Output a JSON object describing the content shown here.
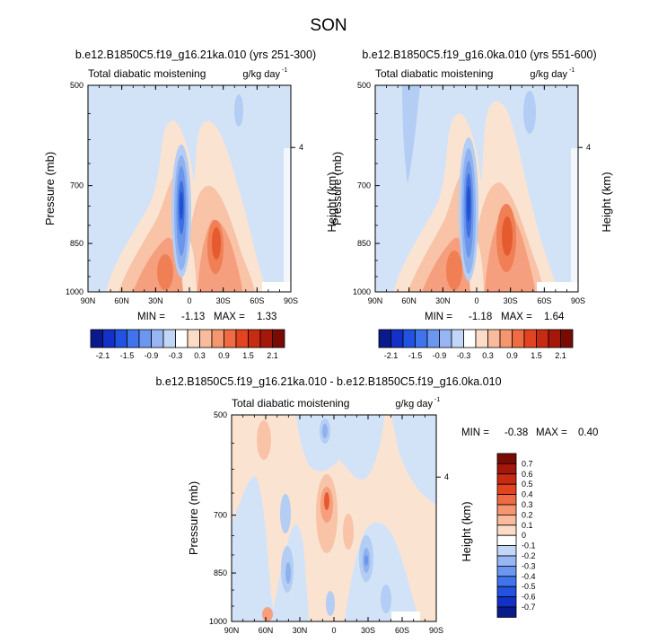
{
  "figure": {
    "title": "SON"
  },
  "chart_data": [
    {
      "type": "heatmap",
      "title": "b.e12.B1850C5.f19_g16.21ka.010 (yrs 251-300)",
      "left_string": "Total diabatic moistening",
      "right_string": "g/kg day",
      "right_string_sup": "-1",
      "xlabels": [
        "90N",
        "60N",
        "30N",
        "0",
        "30S",
        "60S",
        "90S"
      ],
      "xlim": [
        90,
        -90
      ],
      "ylabel": "Pressure (mb)",
      "ylabels": [
        "500",
        "700",
        "850",
        "1000"
      ],
      "y2label": "Height (km)",
      "y2labels": [
        "4"
      ],
      "ylim": [
        1000,
        500
      ],
      "stats_min_label": "MIN = ",
      "stats_min": "-1.13",
      "stats_max_label": "MAX = ",
      "stats_max": "1.33",
      "features": [
        {
          "kind": "drying_core",
          "lat": -7,
          "p_top": 690,
          "p_bottom": 930,
          "value": -1.13
        },
        {
          "kind": "moistening_band",
          "lat": 20,
          "value": 1.33
        },
        {
          "kind": "moistening_band",
          "lat": -25,
          "value": 1.2
        }
      ]
    },
    {
      "type": "heatmap",
      "title": "b.e12.B1850C5.f19_g16.0ka.010 (yrs 551-600)",
      "left_string": "Total diabatic moistening",
      "right_string": "g/kg day",
      "right_string_sup": "-1",
      "xlabels": [
        "90N",
        "60N",
        "30N",
        "0",
        "30S",
        "60S",
        "90S"
      ],
      "xlim": [
        90,
        -90
      ],
      "ylabel": "Pressure (mb)",
      "ylabels": [
        "500",
        "700",
        "850",
        "1000"
      ],
      "y2label": "Height (km)",
      "y2labels": [
        "4"
      ],
      "ylim": [
        1000,
        500
      ],
      "stats_min_label": "MIN = ",
      "stats_min": "-1.18",
      "stats_max_label": "MAX = ",
      "stats_max": "1.64",
      "features": [
        {
          "kind": "drying_core",
          "lat": -7,
          "p_top": 680,
          "p_bottom": 930,
          "value": -1.18
        },
        {
          "kind": "moistening_band",
          "lat": 22,
          "value": 1.4
        },
        {
          "kind": "moistening_band",
          "lat": -28,
          "value": 1.64
        }
      ]
    },
    {
      "type": "heatmap",
      "title": "b.e12.B1850C5.f19_g16.21ka.010 - b.e12.B1850C5.f19_g16.0ka.010",
      "left_string": "Total diabatic moistening",
      "right_string": "g/kg day",
      "right_string_sup": "-1",
      "xlabels": [
        "90N",
        "60N",
        "30N",
        "0",
        "30S",
        "60S",
        "90S"
      ],
      "xlim": [
        90,
        -90
      ],
      "ylabel": "Pressure (mb)",
      "ylabels": [
        "500",
        "700",
        "850",
        "1000"
      ],
      "y2label": "Height (km)",
      "y2labels": [
        "4"
      ],
      "ylim": [
        1000,
        500
      ],
      "stats_min_label": "MIN = ",
      "stats_min": "-0.38",
      "stats_max_label": "MAX = ",
      "stats_max": "0.40",
      "features": [
        {
          "kind": "positive_anomaly",
          "lat": 4,
          "value": 0.4
        },
        {
          "kind": "negative_anomaly",
          "lat": -20,
          "value": -0.38
        }
      ]
    }
  ],
  "colorbars": {
    "top": {
      "labels": [
        "-2.1",
        "-1.5",
        "-0.9",
        "-0.3",
        "0.3",
        "0.9",
        "1.5",
        "2.1"
      ],
      "colors": [
        "#0a1a8a",
        "#1330c8",
        "#2252e0",
        "#3f74ec",
        "#6b97f0",
        "#97b6f3",
        "#c2d6f7",
        "#ffffff",
        "#fbdcc6",
        "#f9bb9b",
        "#f5966f",
        "#ef6b43",
        "#e3431f",
        "#c72c12",
        "#a4170a",
        "#7a0a04"
      ]
    },
    "bottom": {
      "labels": [
        "0.7",
        "0.6",
        "0.5",
        "0.4",
        "0.3",
        "0.2",
        "0.1",
        "0",
        "-0.1",
        "-0.2",
        "-0.3",
        "-0.4",
        "-0.5",
        "-0.6",
        "-0.7"
      ],
      "colors": [
        "#7a0a04",
        "#a4170a",
        "#c72c12",
        "#e3431f",
        "#ef6b43",
        "#f5966f",
        "#f9bb9b",
        "#fbdcc6",
        "#ffffff",
        "#c2d6f7",
        "#97b6f3",
        "#6b97f0",
        "#3f74ec",
        "#2252e0",
        "#1330c8",
        "#0a1a8a"
      ]
    }
  },
  "palette": {
    "bg_blue": "#d2e3f8",
    "light_blue": "#b3cdf4",
    "mid_blue": "#8fb2ef",
    "blue": "#6a95ea",
    "deep_blue": "#3e6ee0",
    "core_blue": "#2050d0",
    "light_peach": "#fbe3d2",
    "peach": "#f8c3a6",
    "salmon": "#f59f7e",
    "orange": "#f07f55",
    "red_orange": "#e65a30",
    "white": "#ffffff"
  }
}
